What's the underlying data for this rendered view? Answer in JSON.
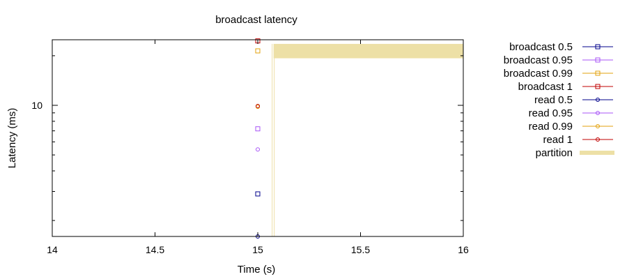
{
  "chart_data": {
    "type": "scatter",
    "title": "broadcast latency",
    "xlabel": "Time (s)",
    "ylabel": "Latency (ms)",
    "xlim": [
      14,
      16
    ],
    "ylim": [
      1.6,
      25
    ],
    "yscale": "log",
    "grid": false,
    "legend_position": "right",
    "x_ticks": [
      {
        "value": 14,
        "label": "14"
      },
      {
        "value": 14.5,
        "label": "14.5"
      },
      {
        "value": 15,
        "label": "15"
      },
      {
        "value": 15.5,
        "label": "15.5"
      },
      {
        "value": 16,
        "label": "16"
      }
    ],
    "y_ticks": [
      {
        "value": 10,
        "label": "10"
      }
    ],
    "series": [
      {
        "name": "broadcast 0.5",
        "color": "#00008b",
        "marker": "square",
        "points": [
          {
            "x": 15.0,
            "y": 2.9
          }
        ]
      },
      {
        "name": "broadcast 0.95",
        "color": "#a855f7",
        "marker": "square",
        "points": [
          {
            "x": 15.0,
            "y": 7.2
          }
        ]
      },
      {
        "name": "broadcast 0.99",
        "color": "#e3a20c",
        "marker": "square",
        "points": [
          {
            "x": 15.0,
            "y": 21.4
          }
        ]
      },
      {
        "name": "broadcast 1",
        "color": "#c00000",
        "marker": "square",
        "points": [
          {
            "x": 15.0,
            "y": 24.6
          }
        ]
      },
      {
        "name": "read 0.5",
        "color": "#00008b",
        "marker": "circle",
        "points": [
          {
            "x": 15.0,
            "y": 1.6
          }
        ]
      },
      {
        "name": "read 0.95",
        "color": "#a855f7",
        "marker": "circle",
        "points": [
          {
            "x": 15.0,
            "y": 5.4
          }
        ]
      },
      {
        "name": "read 0.99",
        "color": "#e3a20c",
        "marker": "circle",
        "points": [
          {
            "x": 15.0,
            "y": 9.8
          }
        ]
      },
      {
        "name": "read 1",
        "color": "#c00000",
        "marker": "circle",
        "points": [
          {
            "x": 15.0,
            "y": 9.9
          }
        ]
      }
    ],
    "partition": {
      "name": "partition",
      "color": "#ede0a6",
      "x_start": 15.07,
      "x_end": 16.0,
      "y_from": 19.3,
      "y_to": 23.6
    }
  }
}
